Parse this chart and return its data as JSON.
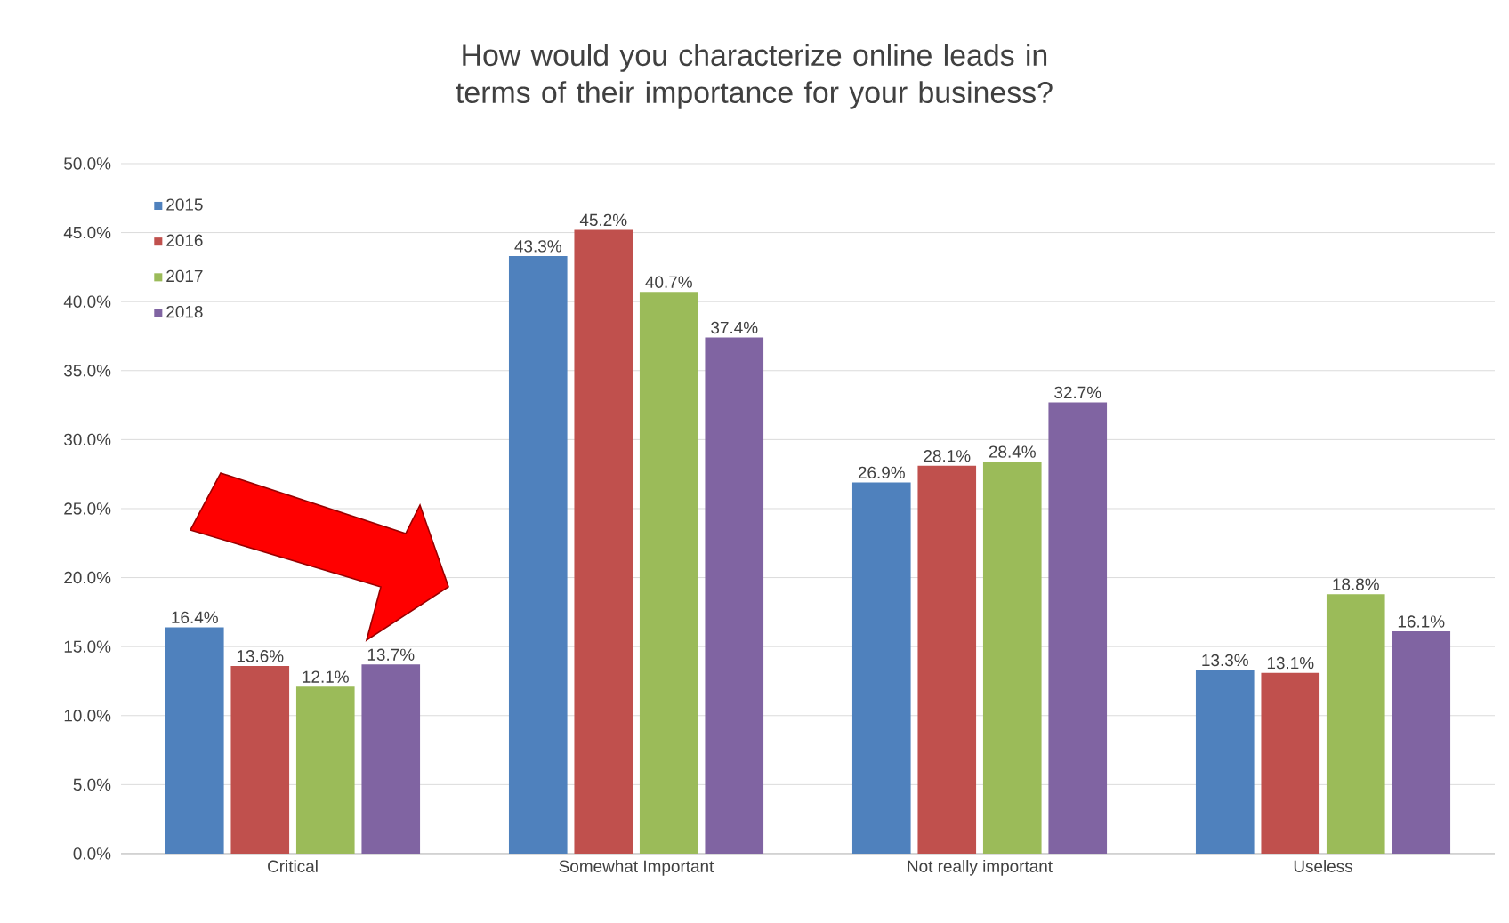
{
  "chart_data": {
    "type": "bar",
    "title": "How would you characterize online leads in terms of their importance for your business?",
    "categories": [
      "Critical",
      "Somewhat Important",
      "Not really important",
      "Useless"
    ],
    "series": [
      {
        "name": "2015",
        "color": "#4f81bd",
        "values": [
          16.4,
          43.3,
          26.9,
          13.3
        ],
        "value_labels": [
          "16.4%",
          "43.3%",
          "26.9%",
          "13.3%"
        ]
      },
      {
        "name": "2016",
        "color": "#c0504d",
        "values": [
          13.6,
          45.2,
          28.1,
          13.1
        ],
        "value_labels": [
          "13.6%",
          "45.2%",
          "28.1%",
          "13.1%"
        ]
      },
      {
        "name": "2017",
        "color": "#9bbb59",
        "values": [
          12.1,
          40.7,
          28.4,
          18.8
        ],
        "value_labels": [
          "12.1%",
          "40.7%",
          "28.4%",
          "18.8%"
        ]
      },
      {
        "name": "2018",
        "color": "#8064a2",
        "values": [
          13.7,
          37.4,
          32.7,
          16.1
        ],
        "value_labels": [
          "13.7%",
          "37.4%",
          "32.7%",
          "16.1%"
        ]
      }
    ],
    "ylim": [
      0,
      50
    ],
    "yticks": [
      {
        "value": 0,
        "label": "0.0%"
      },
      {
        "value": 5,
        "label": "5.0%"
      },
      {
        "value": 10,
        "label": "10.0%"
      },
      {
        "value": 15,
        "label": "15.0%"
      },
      {
        "value": 20,
        "label": "20.0%"
      },
      {
        "value": 25,
        "label": "25.0%"
      },
      {
        "value": 30,
        "label": "30.0%"
      },
      {
        "value": 35,
        "label": "35.0%"
      },
      {
        "value": 40,
        "label": "40.0%"
      },
      {
        "value": 45,
        "label": "45.0%"
      },
      {
        "value": 50,
        "label": "50.0%"
      }
    ],
    "grid": "y",
    "legend": "top left"
  }
}
